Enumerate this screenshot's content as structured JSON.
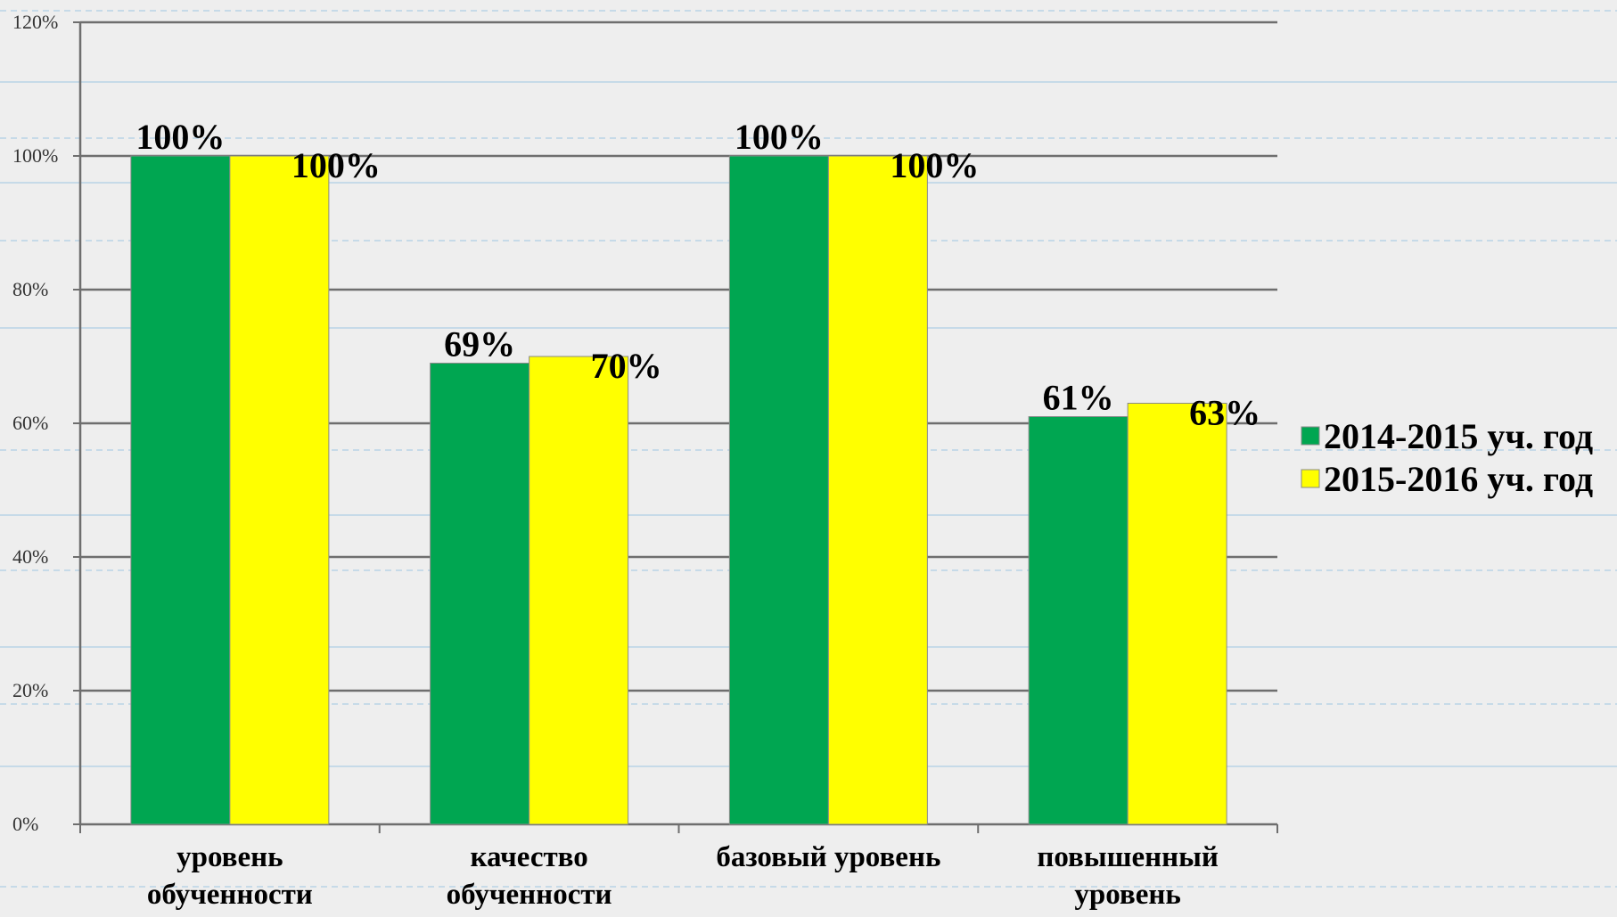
{
  "chart_data": {
    "type": "bar",
    "categories": [
      [
        "уровень",
        "обученности"
      ],
      [
        "качество",
        "обученности"
      ],
      [
        "базовый уровень"
      ],
      [
        "повышенный",
        "уровень"
      ]
    ],
    "series": [
      {
        "name": "2014-2015 уч. год",
        "color": "#00a651",
        "values": [
          100,
          69,
          100,
          61
        ],
        "labels": [
          "100%",
          "69%",
          "100%",
          "61%"
        ]
      },
      {
        "name": "2015-2016 уч. год",
        "color": "#ffff00",
        "values": [
          100,
          70,
          100,
          63
        ],
        "labels": [
          "100%",
          "70%",
          "100%",
          "63%"
        ]
      }
    ],
    "ylim": [
      0,
      120
    ],
    "yticks": [
      0,
      20,
      40,
      60,
      80,
      100,
      120
    ],
    "ytick_labels": [
      "0%",
      "20%",
      "40%",
      "60%",
      "80%",
      "100%",
      "120%"
    ],
    "grid": true,
    "legend_position": "right",
    "title": "",
    "xlabel": "",
    "ylabel": ""
  }
}
